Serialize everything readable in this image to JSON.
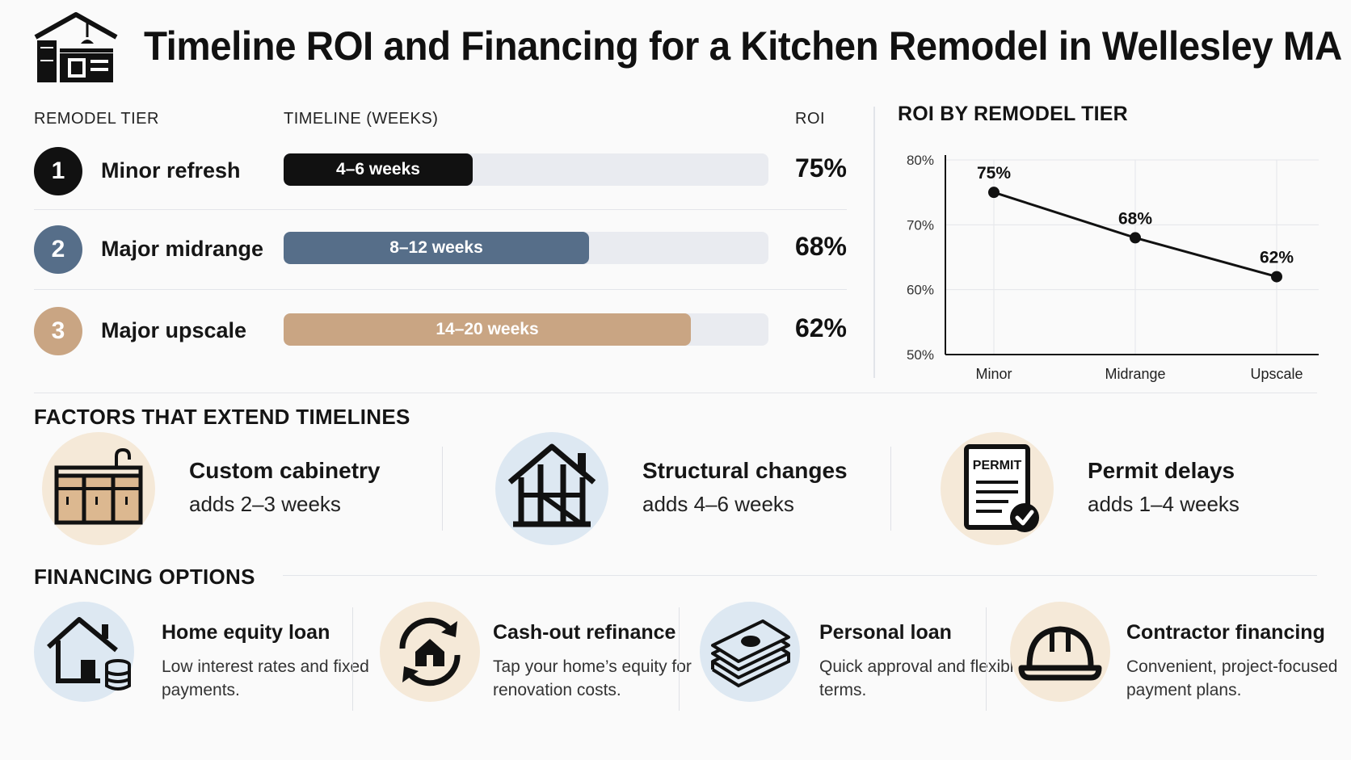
{
  "title": "Timeline ROI and Financing for a Kitchen Remodel in Wellesley MA",
  "header_icon": "kitchen-icon",
  "table": {
    "head_tier": "REMODEL TIER",
    "head_timeline": "TIMELINE (WEEKS)",
    "head_roi": "ROI",
    "rows": [
      {
        "num": "1",
        "name": "Minor refresh",
        "timeline": "4–6 weeks",
        "timeline_fraction": 0.39,
        "roi": "75%",
        "color": "#111111"
      },
      {
        "num": "2",
        "name": "Major midrange",
        "timeline": "8–12 weeks",
        "timeline_fraction": 0.63,
        "roi": "68%",
        "color": "#566e89"
      },
      {
        "num": "3",
        "name": "Major upscale",
        "timeline": "14–20 weeks",
        "timeline_fraction": 0.84,
        "roi": "62%",
        "color": "#c9a583"
      }
    ]
  },
  "chart_data": {
    "type": "line",
    "title": "ROI BY REMODEL TIER",
    "categories": [
      "Minor",
      "Midrange",
      "Upscale"
    ],
    "values": [
      75,
      68,
      62
    ],
    "data_labels": [
      "75%",
      "68%",
      "62%"
    ],
    "ylim": [
      50,
      80
    ],
    "yticks": [
      50,
      60,
      70,
      80
    ],
    "ytick_labels": [
      "50%",
      "60%",
      "70%",
      "80%"
    ],
    "grid": true
  },
  "factors": {
    "title": "FACTORS THAT EXTEND TIMELINES",
    "items": [
      {
        "title": "Custom cabinetry",
        "desc": "adds 2–3 weeks",
        "icon": "cabinet-icon",
        "circle": "#f5e9d8"
      },
      {
        "title": "Structural changes",
        "desc": "adds 4–6 weeks",
        "icon": "house-frame-icon",
        "circle": "#dde8f2"
      },
      {
        "title": "Permit delays",
        "desc": "adds 1–4 weeks",
        "icon": "permit-icon",
        "circle": "#f5e9d8",
        "icon_text": "PERMIT"
      }
    ]
  },
  "financing": {
    "title": "FINANCING OPTIONS",
    "items": [
      {
        "title": "Home equity loan",
        "desc": "Low interest rates and fixed payments.",
        "icon": "house-coins-icon",
        "circle": "#dde8f2"
      },
      {
        "title": "Cash-out refinance",
        "desc": "Tap your home’s equity for renovation costs.",
        "icon": "refinance-icon",
        "circle": "#f5e9d8"
      },
      {
        "title": "Personal loan",
        "desc": "Quick approval and flexible terms.",
        "icon": "cash-icon",
        "circle": "#dde8f2"
      },
      {
        "title": "Contractor financing",
        "desc": "Convenient, project-focused payment plans.",
        "icon": "hard-hat-icon",
        "circle": "#f5e9d8"
      }
    ]
  }
}
